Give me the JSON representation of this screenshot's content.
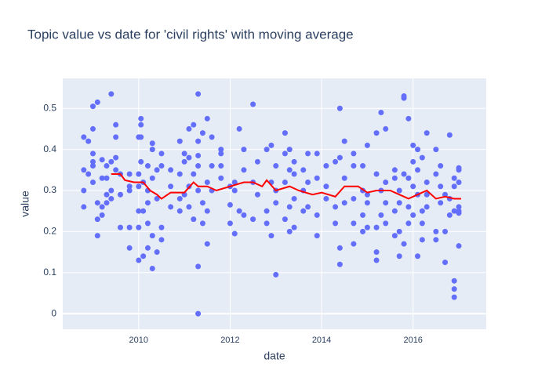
{
  "chart_data": {
    "type": "scatter",
    "title": "Topic value vs date for 'civil rights' with moving average",
    "x_label": "date",
    "y_label": "value",
    "xlim": [
      2008.34,
      2017.6
    ],
    "xticks": [
      2010,
      2012,
      2014,
      2016
    ],
    "ylim": [
      -0.038,
      0.573
    ],
    "yticks": [
      0,
      0.1,
      0.2,
      0.3,
      0.4,
      0.5
    ],
    "grid": true,
    "series": [
      {
        "type": "scatter",
        "color": "#636efa",
        "x": [
          2008.8,
          2008.8,
          2008.8,
          2008.8,
          2008.9,
          2008.9,
          2009.0,
          2009.0,
          2009.0,
          2009.0,
          2009.0,
          2009.0,
          2009.1,
          2009.1,
          2009.1,
          2009.1,
          2009.2,
          2009.2,
          2009.2,
          2009.2,
          2009.3,
          2009.3,
          2009.3,
          2009.3,
          2009.4,
          2009.4,
          2009.4,
          2009.4,
          2009.5,
          2009.5,
          2009.5,
          2009.5,
          2009.6,
          2009.6,
          2009.6,
          2009.8,
          2009.8,
          2009.8,
          2009.8,
          2009.8,
          2010.0,
          2010.0,
          2010.0,
          2010.0,
          2010.0,
          2010.0,
          2010.05,
          2010.05,
          2010.05,
          2010.05,
          2010.1,
          2010.1,
          2010.1,
          2010.2,
          2010.2,
          2010.2,
          2010.2,
          2010.2,
          2010.3,
          2010.3,
          2010.3,
          2010.3,
          2010.3,
          2010.4,
          2010.4,
          2010.4,
          2010.5,
          2010.5,
          2010.5,
          2010.5,
          2010.7,
          2010.7,
          2010.7,
          2010.9,
          2010.9,
          2010.9,
          2010.9,
          2011.0,
          2011.0,
          2011.0,
          2011.1,
          2011.1,
          2011.1,
          2011.1,
          2011.2,
          2011.2,
          2011.2,
          2011.3,
          2011.3,
          2011.3,
          2011.3,
          2011.3,
          2011.3,
          2011.3,
          2011.4,
          2011.4,
          2011.4,
          2011.5,
          2011.5,
          2011.5,
          2011.5,
          2011.6,
          2011.6,
          2011.6,
          2011.8,
          2011.8,
          2011.8,
          2011.8,
          2012.0,
          2012.0,
          2012.0,
          2012.1,
          2012.1,
          2012.1,
          2012.2,
          2012.2,
          2012.3,
          2012.3,
          2012.3,
          2012.5,
          2012.5,
          2012.5,
          2012.6,
          2012.6,
          2012.8,
          2012.8,
          2012.8,
          2012.9,
          2012.9,
          2012.9,
          2013.0,
          2013.0,
          2013.0,
          2013.0,
          2013.2,
          2013.2,
          2013.2,
          2013.2,
          2013.3,
          2013.3,
          2013.3,
          2013.3,
          2013.4,
          2013.4,
          2013.4,
          2013.4,
          2013.6,
          2013.6,
          2013.6,
          2013.7,
          2013.7,
          2013.7,
          2013.9,
          2013.9,
          2013.9,
          2013.9,
          2014.1,
          2014.1,
          2014.1,
          2014.3,
          2014.3,
          2014.3,
          2014.4,
          2014.4,
          2014.4,
          2014.4,
          2014.5,
          2014.5,
          2014.5,
          2014.7,
          2014.7,
          2014.7,
          2014.7,
          2014.7,
          2014.9,
          2014.9,
          2014.9,
          2014.9,
          2015.0,
          2015.0,
          2015.0,
          2015.0,
          2015.2,
          2015.2,
          2015.2,
          2015.2,
          2015.2,
          2015.3,
          2015.3,
          2015.3,
          2015.4,
          2015.4,
          2015.4,
          2015.4,
          2015.6,
          2015.6,
          2015.6,
          2015.6,
          2015.7,
          2015.7,
          2015.7,
          2015.7,
          2015.8,
          2015.8,
          2015.8,
          2015.8,
          2015.9,
          2015.9,
          2015.9,
          2015.9,
          2016.0,
          2016.0,
          2016.0,
          2016.0,
          2016.1,
          2016.1,
          2016.1,
          2016.1,
          2016.2,
          2016.2,
          2016.2,
          2016.2,
          2016.3,
          2016.3,
          2016.3,
          2016.3,
          2016.5,
          2016.5,
          2016.5,
          2016.5,
          2016.6,
          2016.6,
          2016.6,
          2016.7,
          2016.7,
          2016.7,
          2016.8,
          2016.8,
          2016.8,
          2016.9,
          2016.9,
          2016.9,
          2016.9,
          2016.9,
          2016.9,
          2017.0,
          2017.0,
          2017.0,
          2017.0,
          2017.0,
          2017.0,
          2017.0
        ],
        "values": [
          0.43,
          0.35,
          0.26,
          0.3,
          0.42,
          0.34,
          0.505,
          0.37,
          0.36,
          0.39,
          0.45,
          0.32,
          0.515,
          0.19,
          0.27,
          0.23,
          0.33,
          0.26,
          0.24,
          0.375,
          0.36,
          0.29,
          0.33,
          0.27,
          0.535,
          0.3,
          0.37,
          0.28,
          0.43,
          0.46,
          0.35,
          0.38,
          0.21,
          0.29,
          0.34,
          0.16,
          0.31,
          0.21,
          0.3,
          0.34,
          0.13,
          0.21,
          0.43,
          0.34,
          0.31,
          0.25,
          0.475,
          0.46,
          0.43,
          0.37,
          0.14,
          0.32,
          0.25,
          0.16,
          0.3,
          0.22,
          0.36,
          0.27,
          0.11,
          0.4,
          0.415,
          0.33,
          0.19,
          0.15,
          0.35,
          0.28,
          0.18,
          0.39,
          0.21,
          0.36,
          0.26,
          0.31,
          0.35,
          0.42,
          0.34,
          0.25,
          0.28,
          0.37,
          0.29,
          0.39,
          0.45,
          0.38,
          0.31,
          0.26,
          0.46,
          0.23,
          0.34,
          0.535,
          0,
          0.36,
          0.42,
          0.3,
          0.115,
          0.385,
          0.22,
          0.27,
          0.44,
          0.475,
          0.17,
          0.25,
          0.32,
          0.43,
          0.36,
          0.3,
          0.4,
          0.36,
          0.33,
          0.39,
          0.22,
          0.265,
          0.31,
          0.195,
          0.32,
          0.3,
          0.45,
          0.25,
          0.4,
          0.35,
          0.24,
          0.51,
          0.23,
          0.32,
          0.29,
          0.37,
          0.4,
          0.22,
          0.25,
          0.41,
          0.19,
          0.32,
          0.095,
          0.27,
          0.36,
          0.3,
          0.44,
          0.23,
          0.32,
          0.39,
          0.2,
          0.35,
          0.26,
          0.4,
          0.21,
          0.28,
          0.37,
          0.34,
          0.35,
          0.25,
          0.3,
          0.26,
          0.39,
          0.32,
          0.19,
          0.24,
          0.39,
          0.33,
          0.36,
          0.28,
          0.31,
          0.37,
          0.26,
          0.22,
          0.5,
          0.12,
          0.16,
          0.38,
          0.42,
          0.33,
          0.27,
          0.39,
          0.17,
          0.22,
          0.36,
          0.28,
          0.36,
          0.2,
          0.24,
          0.3,
          0.41,
          0.29,
          0.21,
          0.27,
          0.44,
          0.13,
          0.21,
          0.34,
          0.15,
          0.49,
          0.24,
          0.3,
          0.45,
          0.22,
          0.27,
          0.32,
          0.35,
          0.19,
          0.25,
          0.33,
          0.2,
          0.14,
          0.3,
          0.27,
          0.525,
          0.53,
          0.34,
          0.17,
          0.475,
          0.26,
          0.33,
          0.22,
          0.41,
          0.24,
          0.31,
          0.37,
          0.14,
          0.4,
          0.29,
          0.35,
          0.18,
          0.25,
          0.38,
          0.22,
          0.44,
          0.29,
          0.26,
          0.32,
          0.4,
          0.2,
          0.34,
          0.18,
          0.36,
          0.27,
          0.31,
          0.125,
          0.2,
          0.29,
          0.435,
          0.24,
          0.28,
          0.33,
          0.04,
          0.08,
          0.31,
          0.06,
          0.25,
          0.35,
          0.245,
          0.355,
          0.165,
          0.26,
          0.32,
          0.25
        ]
      },
      {
        "type": "line",
        "color": "#ff0000",
        "x": [
          2009.4,
          2009.6,
          2009.7,
          2009.9,
          2010.1,
          2010.25,
          2010.4,
          2010.5,
          2010.7,
          2011.0,
          2011.2,
          2011.3,
          2011.5,
          2011.7,
          2012.0,
          2012.3,
          2012.5,
          2012.7,
          2012.8,
          2013.0,
          2013.3,
          2013.5,
          2013.8,
          2014.0,
          2014.3,
          2014.5,
          2014.8,
          2015.0,
          2015.2,
          2015.5,
          2015.7,
          2015.9,
          2016.1,
          2016.3,
          2016.5,
          2016.7,
          2016.9,
          2017.05
        ],
        "values": [
          0.34,
          0.34,
          0.325,
          0.32,
          0.32,
          0.3,
          0.29,
          0.28,
          0.295,
          0.295,
          0.32,
          0.31,
          0.31,
          0.3,
          0.31,
          0.32,
          0.32,
          0.31,
          0.325,
          0.3,
          0.31,
          0.3,
          0.29,
          0.295,
          0.285,
          0.31,
          0.31,
          0.295,
          0.3,
          0.3,
          0.29,
          0.28,
          0.29,
          0.3,
          0.28,
          0.285,
          0.28,
          0.28
        ]
      }
    ]
  }
}
